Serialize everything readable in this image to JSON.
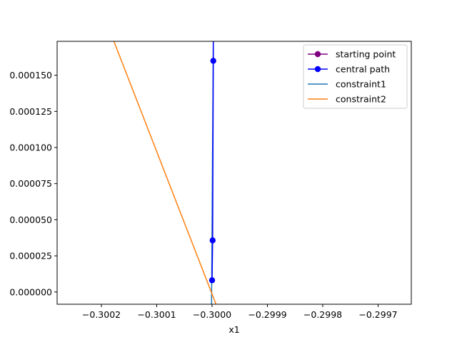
{
  "chart_data": {
    "type": "line",
    "title": "",
    "xlabel": "x1",
    "ylabel": "",
    "xlim": [
      -0.30028,
      -0.29964
    ],
    "ylim": [
      -8.5e-06,
      0.0001735
    ],
    "xticks": [
      -0.3002,
      -0.3001,
      -0.3,
      -0.2999,
      -0.2998,
      -0.2997
    ],
    "xtick_labels": [
      "−0.3002",
      "−0.3001",
      "−0.3000",
      "−0.2999",
      "−0.2998",
      "−0.2997"
    ],
    "yticks": [
      0.0,
      2.5e-05,
      5e-05,
      7.5e-05,
      0.0001,
      0.000125,
      0.00015
    ],
    "ytick_labels": [
      "0.000000",
      "0.000025",
      "0.000050",
      "0.000075",
      "0.000100",
      "0.000125",
      "0.000150"
    ],
    "grid": false,
    "legend_position": "upper right",
    "series": [
      {
        "name": "starting point",
        "kind": "line-marker",
        "color": "#800080",
        "points": []
      },
      {
        "name": "central path",
        "kind": "line-marker",
        "color": "#0000ff",
        "points": [
          [
            -0.3,
            8.1e-06
          ],
          [
            -0.299999,
            3.57e-05
          ],
          [
            -0.2999978,
            0.00016
          ],
          [
            -0.2999977,
            0.0002
          ]
        ],
        "marker_count": 3
      },
      {
        "name": "constraint1",
        "kind": "line",
        "color": "#1f77b4",
        "points": [
          [
            -0.30000094,
            -8.5e-06
          ],
          [
            -0.29999784,
            0.0001735
          ]
        ]
      },
      {
        "name": "constraint2",
        "kind": "line",
        "color": "#ff7f0e",
        "points": [
          [
            -0.3001774,
            0.0001735
          ],
          [
            -0.2999929,
            -8.5e-06
          ]
        ]
      }
    ]
  }
}
